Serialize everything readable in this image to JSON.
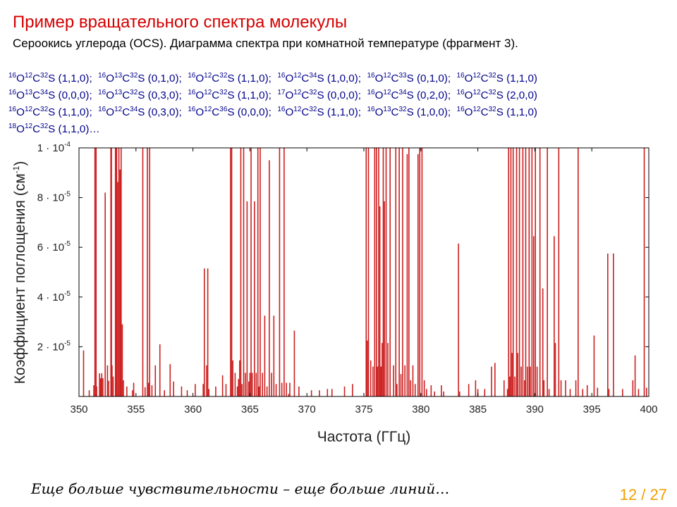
{
  "slide": {
    "title": "Пример вращательного спектра молекулы",
    "subtitle": "Сероокись углерода (OCS).  Диаграмма спектра при комнатной температуре (фрагмент 3).",
    "footer": "Еще больше чувствительности – еще больше линий…",
    "page": "12 / 27",
    "colors": {
      "title": "#d40000",
      "isotopes": "#00008b",
      "page": "#f0a000",
      "lines": "#cc1f1f"
    }
  },
  "isotopologue_lines": [
    [
      {
        "o": "16",
        "c": "12",
        "s": "32",
        "v": "(1,1,0)"
      },
      {
        "o": "16",
        "c": "13",
        "s": "32",
        "v": "(0,1,0)"
      },
      {
        "o": "16",
        "c": "12",
        "s": "32",
        "v": "(1,1,0)"
      },
      {
        "o": "16",
        "c": "12",
        "s": "34",
        "v": "(1,0,0)"
      },
      {
        "o": "16",
        "c": "12",
        "s": "33",
        "v": "(0,1,0)"
      },
      {
        "o": "16",
        "c": "12",
        "s": "32",
        "v": "(1,1,0)"
      }
    ],
    [
      {
        "o": "16",
        "c": "13",
        "s": "34",
        "v": "(0,0,0)"
      },
      {
        "o": "16",
        "c": "13",
        "s": "32",
        "v": "(0,3,0)"
      },
      {
        "o": "16",
        "c": "12",
        "s": "32",
        "v": "(1,1,0)"
      },
      {
        "o": "17",
        "c": "12",
        "s": "32",
        "v": "(0,0,0)"
      },
      {
        "o": "16",
        "c": "12",
        "s": "34",
        "v": "(0,2,0)"
      },
      {
        "o": "16",
        "c": "12",
        "s": "32",
        "v": "(2,0,0)"
      }
    ],
    [
      {
        "o": "16",
        "c": "12",
        "s": "32",
        "v": "(1,1,0)"
      },
      {
        "o": "16",
        "c": "12",
        "s": "34",
        "v": "(0,3,0)"
      },
      {
        "o": "16",
        "c": "12",
        "s": "36",
        "v": "(0,0,0)"
      },
      {
        "o": "16",
        "c": "12",
        "s": "32",
        "v": "(1,1,0)"
      },
      {
        "o": "16",
        "c": "13",
        "s": "32",
        "v": "(1,0,0)"
      },
      {
        "o": "16",
        "c": "12",
        "s": "32",
        "v": "(1,1,0)"
      }
    ],
    [
      {
        "o": "18",
        "c": "12",
        "s": "32",
        "v": "(1,1,0)…"
      }
    ]
  ],
  "chart_data": {
    "type": "bar",
    "xlabel": "Частота (ГГц)",
    "ylabel_main": "Коэффициент поглощения  (см",
    "ylabel_exp": "-1",
    "ylabel_close": ")",
    "xlim": [
      350,
      400
    ],
    "ylim": [
      0,
      0.0001
    ],
    "x_ticks": [
      350,
      355,
      360,
      365,
      370,
      375,
      380,
      385,
      390,
      395,
      400
    ],
    "y_ticks": [
      {
        "value": 2e-05,
        "mant": "2 · 10",
        "exp": "-5"
      },
      {
        "value": 4e-05,
        "mant": "4 · 10",
        "exp": "-5"
      },
      {
        "value": 6e-05,
        "mant": "6 · 10",
        "exp": "-5"
      },
      {
        "value": 8e-05,
        "mant": "8 · 10",
        "exp": "-5"
      },
      {
        "value": 0.0001,
        "mant": "1 · 10",
        "exp": "-4"
      }
    ],
    "grid": false,
    "lines": [
      [
        350.4,
        1.85e-05
      ],
      [
        350.9,
        2.5e-06
      ],
      [
        351.3,
        4.5e-06
      ],
      [
        351.4,
        0.0001
      ],
      [
        351.5,
        0.0001
      ],
      [
        351.55,
        4e-06
      ],
      [
        351.8,
        9.3e-06
      ],
      [
        351.9,
        7.3e-06
      ],
      [
        352.0,
        9.3e-06
      ],
      [
        352.1,
        7.3e-06
      ],
      [
        352.3,
        8.2e-05
      ],
      [
        352.5,
        1.25e-05
      ],
      [
        352.6,
        6.3e-06
      ],
      [
        352.8,
        0.0001
      ],
      [
        352.85,
        0.0001
      ],
      [
        352.9,
        1.25e-05
      ],
      [
        353.0,
        8e-06
      ],
      [
        353.2,
        0.0001
      ],
      [
        353.3,
        0.0001
      ],
      [
        353.4,
        8.63e-05
      ],
      [
        353.5,
        0.0001
      ],
      [
        353.6,
        9.13e-05
      ],
      [
        353.7,
        0.0001
      ],
      [
        353.8,
        2.9e-05
      ],
      [
        353.9,
        6.5e-06
      ],
      [
        354.2,
        4e-06
      ],
      [
        354.7,
        2.5e-06
      ],
      [
        354.8,
        5.5e-06
      ],
      [
        355.6,
        0.0001
      ],
      [
        355.8,
        3.7e-06
      ],
      [
        356.0,
        0.0001
      ],
      [
        356.1,
        5.5e-06
      ],
      [
        356.2,
        0.0001
      ],
      [
        356.4,
        4.5e-06
      ],
      [
        356.7,
        1.25e-05
      ],
      [
        357.1,
        2.1e-05
      ],
      [
        357.5,
        2.5e-06
      ],
      [
        358.0,
        1.3e-05
      ],
      [
        358.3,
        6e-06
      ],
      [
        359.0,
        4e-06
      ],
      [
        359.5,
        2.5e-06
      ],
      [
        360.2,
        5e-06
      ],
      [
        360.9,
        5e-06
      ],
      [
        361.0,
        5.15e-05
      ],
      [
        361.2,
        1.25e-05
      ],
      [
        361.3,
        5.15e-05
      ],
      [
        361.4,
        3e-06
      ],
      [
        362.0,
        4e-06
      ],
      [
        362.6,
        8.5e-06
      ],
      [
        362.9,
        5e-06
      ],
      [
        363.3,
        0.0001
      ],
      [
        363.4,
        0.0001
      ],
      [
        363.5,
        1.45e-05
      ],
      [
        363.7,
        9.5e-06
      ],
      [
        363.9,
        4e-06
      ],
      [
        364.0,
        7e-06
      ],
      [
        364.1,
        1.45e-05
      ],
      [
        364.2,
        0.0001
      ],
      [
        364.3,
        5e-06
      ],
      [
        364.45,
        0.0001
      ],
      [
        364.6,
        9.5e-06
      ],
      [
        364.75,
        7.85e-05
      ],
      [
        364.9,
        6e-06
      ],
      [
        365.0,
        9.5e-06
      ],
      [
        365.1,
        0.0001
      ],
      [
        365.2,
        9.5e-06
      ],
      [
        365.4,
        7.85e-05
      ],
      [
        365.55,
        9.5e-06
      ],
      [
        365.7,
        0.0001
      ],
      [
        365.8,
        4e-06
      ],
      [
        365.9,
        0.0001
      ],
      [
        366.1,
        9.5e-06
      ],
      [
        366.3,
        3.25e-05
      ],
      [
        366.5,
        4e-06
      ],
      [
        366.7,
        9.5e-05
      ],
      [
        366.9,
        9.5e-06
      ],
      [
        367.1,
        3.25e-05
      ],
      [
        367.3,
        5e-06
      ],
      [
        367.6,
        0.0001
      ],
      [
        367.8,
        5.5e-06
      ],
      [
        368.0,
        0.0001
      ],
      [
        368.2,
        5.5e-06
      ],
      [
        368.4,
        1e-06
      ],
      [
        368.5,
        5.5e-06
      ],
      [
        368.9,
        2.65e-05
      ],
      [
        369.3,
        4e-06
      ],
      [
        370.4,
        2.5e-06
      ],
      [
        371.1,
        2.5e-06
      ],
      [
        371.8,
        3e-06
      ],
      [
        372.2,
        3e-06
      ],
      [
        373.3,
        4e-06
      ],
      [
        374.0,
        5e-06
      ],
      [
        375.2,
        0.0001
      ],
      [
        375.3,
        2.25e-05
      ],
      [
        375.4,
        0.0001
      ],
      [
        375.6,
        1.45e-05
      ],
      [
        375.8,
        1.2e-05
      ],
      [
        375.95,
        0.0001
      ],
      [
        376.1,
        0.0001
      ],
      [
        376.2,
        1.2e-05
      ],
      [
        376.3,
        0.0001
      ],
      [
        376.4,
        7.65e-05
      ],
      [
        376.5,
        1.2e-05
      ],
      [
        376.6,
        2.15e-05
      ],
      [
        376.7,
        0.0001
      ],
      [
        376.8,
        7.85e-05
      ],
      [
        376.95,
        0.0001
      ],
      [
        377.1,
        2.15e-05
      ],
      [
        377.3,
        0.0001
      ],
      [
        377.6,
        1.25e-05
      ],
      [
        377.8,
        0.0001
      ],
      [
        377.9,
        5e-06
      ],
      [
        378.1,
        0.0001
      ],
      [
        378.25,
        9e-06
      ],
      [
        378.4,
        0.0001
      ],
      [
        378.6,
        1.25e-05
      ],
      [
        378.8,
        9.75e-05
      ],
      [
        378.95,
        0.0001
      ],
      [
        379.1,
        6.5e-06
      ],
      [
        379.3,
        1.25e-05
      ],
      [
        379.5,
        5e-06
      ],
      [
        379.75,
        9.75e-05
      ],
      [
        379.9,
        0.0001
      ],
      [
        380.1,
        0.0001
      ],
      [
        380.3,
        6.5e-06
      ],
      [
        380.5,
        3e-06
      ],
      [
        380.9,
        4.5e-06
      ],
      [
        381.2,
        2e-06
      ],
      [
        381.8,
        4.5e-06
      ],
      [
        382.0,
        2e-06
      ],
      [
        383.3,
        6.15e-05
      ],
      [
        383.4,
        2e-06
      ],
      [
        384.2,
        5e-06
      ],
      [
        384.8,
        6.5e-06
      ],
      [
        385.0,
        3e-06
      ],
      [
        385.6,
        3e-06
      ],
      [
        386.2,
        1.2e-05
      ],
      [
        386.5,
        1.35e-05
      ],
      [
        387.3,
        6.5e-06
      ],
      [
        387.6,
        3e-06
      ],
      [
        387.7,
        0.0001
      ],
      [
        387.8,
        8e-06
      ],
      [
        387.9,
        0.0001
      ],
      [
        388.0,
        1.75e-05
      ],
      [
        388.1,
        0.0001
      ],
      [
        388.25,
        8e-06
      ],
      [
        388.4,
        0.0001
      ],
      [
        388.5,
        1.75e-05
      ],
      [
        388.65,
        0.0001
      ],
      [
        388.8,
        1.2e-05
      ],
      [
        388.95,
        0.0001
      ],
      [
        389.1,
        6.5e-06
      ],
      [
        389.2,
        0.0001
      ],
      [
        389.35,
        1.2e-05
      ],
      [
        389.5,
        0.0001
      ],
      [
        389.6,
        1.2e-05
      ],
      [
        389.75,
        0.0001
      ],
      [
        389.9,
        6.45e-05
      ],
      [
        390.05,
        0.0001
      ],
      [
        390.2,
        1.2e-05
      ],
      [
        390.45,
        0.0001
      ],
      [
        390.7,
        4.35e-05
      ],
      [
        390.8,
        6.5e-06
      ],
      [
        391.1,
        0.0001
      ],
      [
        391.25,
        3e-06
      ],
      [
        391.7,
        6.45e-05
      ],
      [
        391.8,
        2.15e-05
      ],
      [
        392.1,
        0.0001
      ],
      [
        392.3,
        6.5e-06
      ],
      [
        392.7,
        6.5e-06
      ],
      [
        393.1,
        3e-06
      ],
      [
        393.6,
        6.5e-06
      ],
      [
        393.8,
        0.0001
      ],
      [
        394.2,
        3e-06
      ],
      [
        394.6,
        4.5e-06
      ],
      [
        395.2,
        2.45e-05
      ],
      [
        395.5,
        3.5e-06
      ],
      [
        396.4,
        5.75e-05
      ],
      [
        396.5,
        3e-06
      ],
      [
        396.9,
        5.75e-05
      ],
      [
        397.7,
        3e-06
      ],
      [
        398.6,
        6.5e-06
      ],
      [
        398.8,
        1.65e-05
      ],
      [
        399.1,
        3e-06
      ],
      [
        399.6,
        0.0001
      ],
      [
        399.8,
        3.5e-06
      ]
    ]
  }
}
